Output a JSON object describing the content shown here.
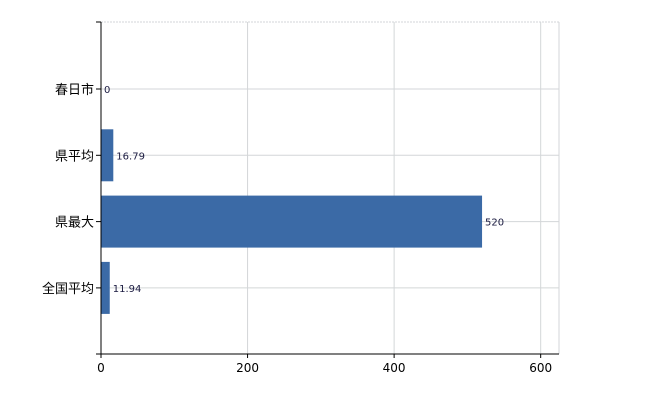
{
  "chart_data": {
    "type": "bar",
    "orientation": "horizontal",
    "categories": [
      "春日市",
      "県平均",
      "県最大",
      "全国平均"
    ],
    "values": [
      0,
      16.79,
      520,
      11.94
    ],
    "data_labels": [
      "0",
      "16.79",
      "520",
      "11.94"
    ],
    "title": "",
    "xlabel": "",
    "ylabel": "",
    "xlim": [
      0,
      625
    ],
    "xticks": [
      "0",
      "200",
      "400",
      "600"
    ],
    "xtick_values": [
      0,
      200,
      400,
      600
    ],
    "grid": true,
    "colors": {
      "bar": "#3b6aa6",
      "grid": "#d3d6d8",
      "axis": "#000000",
      "label": "#1a1a40"
    }
  }
}
